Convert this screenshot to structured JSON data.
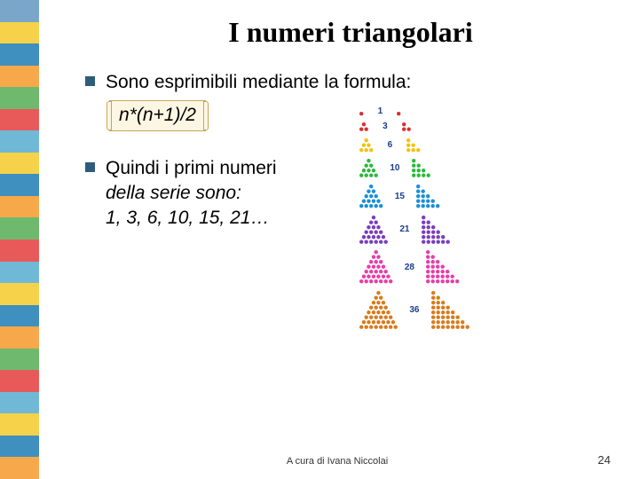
{
  "title": "I numeri triangolari",
  "bullets": {
    "b1_text": "Sono esprimibili mediante la formula:",
    "formula": "n*(n+1)/2",
    "b2_line1": "Quindi i primi numeri",
    "b2_line2": "della serie sono:",
    "b2_line3": "1, 3, 6, 10, 15, 21…"
  },
  "footer": {
    "credit": "A cura di Ivana Niccolai",
    "page": "24"
  },
  "sidebar_stripes": [
    "#7aa6c9",
    "#f6d24a",
    "#3f8fbf",
    "#f6a84a",
    "#6fb96f",
    "#e85a5a",
    "#6fb9d6",
    "#f6d24a",
    "#3f8fbf",
    "#f6a84a",
    "#6fb96f",
    "#e85a5a",
    "#6fb9d6",
    "#f6d24a",
    "#3f8fbf",
    "#f6a84a",
    "#6fb96f",
    "#e85a5a",
    "#6fb9d6",
    "#f6d24a",
    "#3f8fbf",
    "#f6a84a"
  ],
  "diagram": {
    "dot_radius": 2.2,
    "spacing": 5.5,
    "rows": [
      {
        "n": 1,
        "label": "1",
        "color": "#d93030"
      },
      {
        "n": 2,
        "label": "3",
        "color": "#d93030"
      },
      {
        "n": 3,
        "label": "6",
        "color": "#f2c20d"
      },
      {
        "n": 4,
        "label": "10",
        "color": "#2db83d"
      },
      {
        "n": 5,
        "label": "15",
        "color": "#1a8fd9"
      },
      {
        "n": 6,
        "label": "21",
        "color": "#7a3dbf"
      },
      {
        "n": 7,
        "label": "28",
        "color": "#e83da8"
      },
      {
        "n": 8,
        "label": "36",
        "color": "#d97a1a"
      }
    ]
  }
}
